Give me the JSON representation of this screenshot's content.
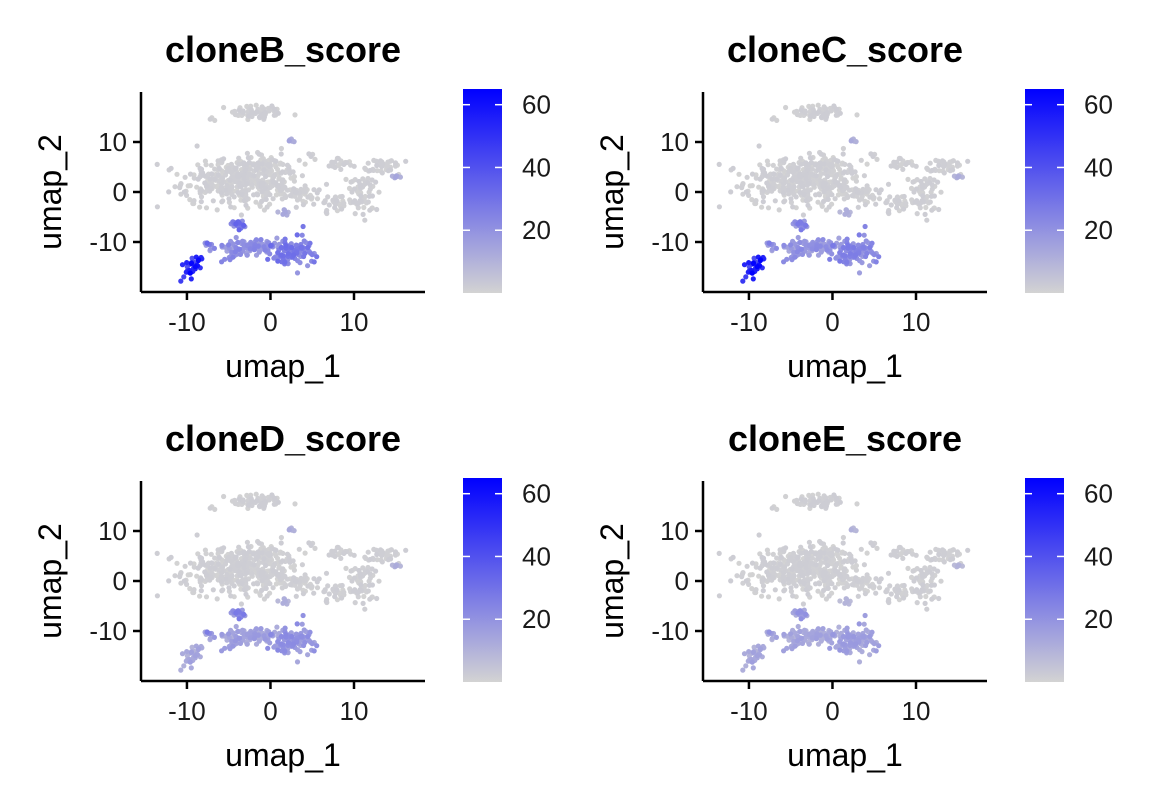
{
  "chart_data": [
    {
      "type": "scatter",
      "title": "cloneB_score",
      "xlabel": "umap_1",
      "ylabel": "umap_2",
      "xlim": [
        -15.5,
        18.5
      ],
      "ylim": [
        -20,
        20
      ],
      "xticks": [
        -10,
        0,
        10
      ],
      "yticks": [
        -10,
        0,
        10
      ],
      "color_scale": {
        "low": "#d3d3d3",
        "high": "#0000ff",
        "min": 0,
        "max": 65,
        "ticks": [
          20,
          40,
          60
        ]
      },
      "grid": false,
      "legend": "right",
      "cluster_scores": {
        "top": 0,
        "main": 1,
        "right": 2,
        "mid_small": 30,
        "mid_big": 22,
        "big_right": 28,
        "bottom_left": 58,
        "small_spots": 14
      }
    },
    {
      "type": "scatter",
      "title": "cloneC_score",
      "xlabel": "umap_1",
      "ylabel": "umap_2",
      "xlim": [
        -15.5,
        18.5
      ],
      "ylim": [
        -20,
        20
      ],
      "xticks": [
        -10,
        0,
        10
      ],
      "yticks": [
        -10,
        0,
        10
      ],
      "color_scale": {
        "low": "#d3d3d3",
        "high": "#0000ff",
        "min": 0,
        "max": 65,
        "ticks": [
          20,
          40,
          60
        ]
      },
      "grid": false,
      "legend": "right",
      "cluster_scores": {
        "top": 0,
        "main": 1,
        "right": 1,
        "mid_small": 24,
        "mid_big": 20,
        "big_right": 24,
        "bottom_left": 60,
        "small_spots": 12
      }
    },
    {
      "type": "scatter",
      "title": "cloneD_score",
      "xlabel": "umap_1",
      "ylabel": "umap_2",
      "xlim": [
        -15.5,
        18.5
      ],
      "ylim": [
        -20,
        20
      ],
      "xticks": [
        -10,
        0,
        10
      ],
      "yticks": [
        -10,
        0,
        10
      ],
      "color_scale": {
        "low": "#d3d3d3",
        "high": "#0000ff",
        "min": 0,
        "max": 65,
        "ticks": [
          20,
          40,
          60
        ]
      },
      "grid": false,
      "legend": "right",
      "cluster_scores": {
        "top": 0,
        "main": 2,
        "right": 2,
        "mid_small": 24,
        "mid_big": 16,
        "big_right": 20,
        "bottom_left": 14,
        "small_spots": 12
      }
    },
    {
      "type": "scatter",
      "title": "cloneE_score",
      "xlabel": "umap_1",
      "ylabel": "umap_2",
      "xlim": [
        -15.5,
        18.5
      ],
      "ylim": [
        -20,
        20
      ],
      "xticks": [
        -10,
        0,
        10
      ],
      "yticks": [
        -10,
        0,
        10
      ],
      "color_scale": {
        "low": "#d3d3d3",
        "high": "#0000ff",
        "min": 0,
        "max": 65,
        "ticks": [
          20,
          40,
          60
        ]
      },
      "grid": false,
      "legend": "right",
      "cluster_scores": {
        "top": 0,
        "main": 1,
        "right": 1,
        "mid_small": 18,
        "mid_big": 14,
        "big_right": 16,
        "bottom_left": 14,
        "small_spots": 10
      }
    }
  ]
}
